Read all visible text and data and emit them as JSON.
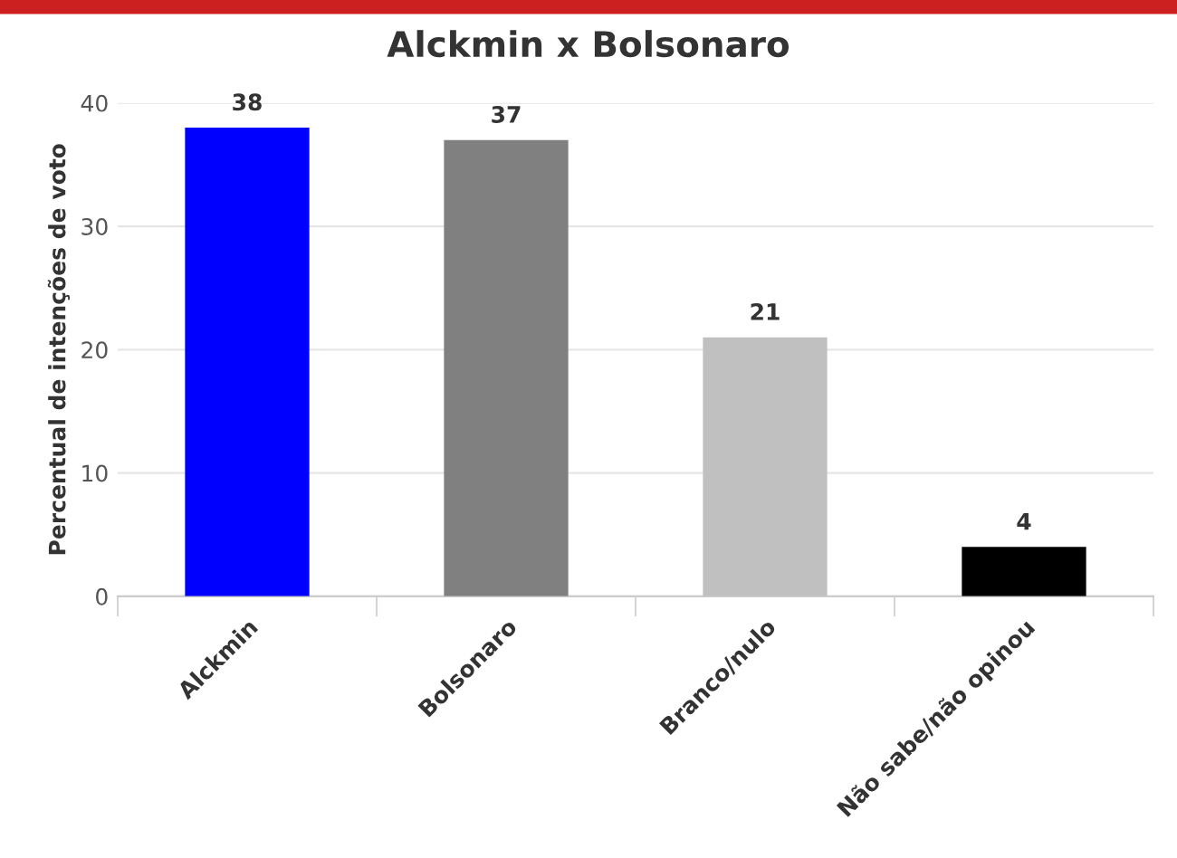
{
  "chart_data": {
    "type": "bar",
    "title": "Alckmin x Bolsonaro",
    "ylabel": "Percentual de intenções de voto",
    "categories": [
      "Alckmin",
      "Bolsonaro",
      "Branco/nulo",
      "Não sabe/não opinou"
    ],
    "values": [
      38,
      37,
      21,
      4
    ],
    "colors": [
      "#0000ff",
      "#808080",
      "#c0c0c0",
      "#000000"
    ],
    "ylim": [
      0,
      40
    ],
    "yticks": [
      0,
      10,
      20,
      30,
      40
    ],
    "grid": "y",
    "data_labels": true,
    "legend": false
  }
}
